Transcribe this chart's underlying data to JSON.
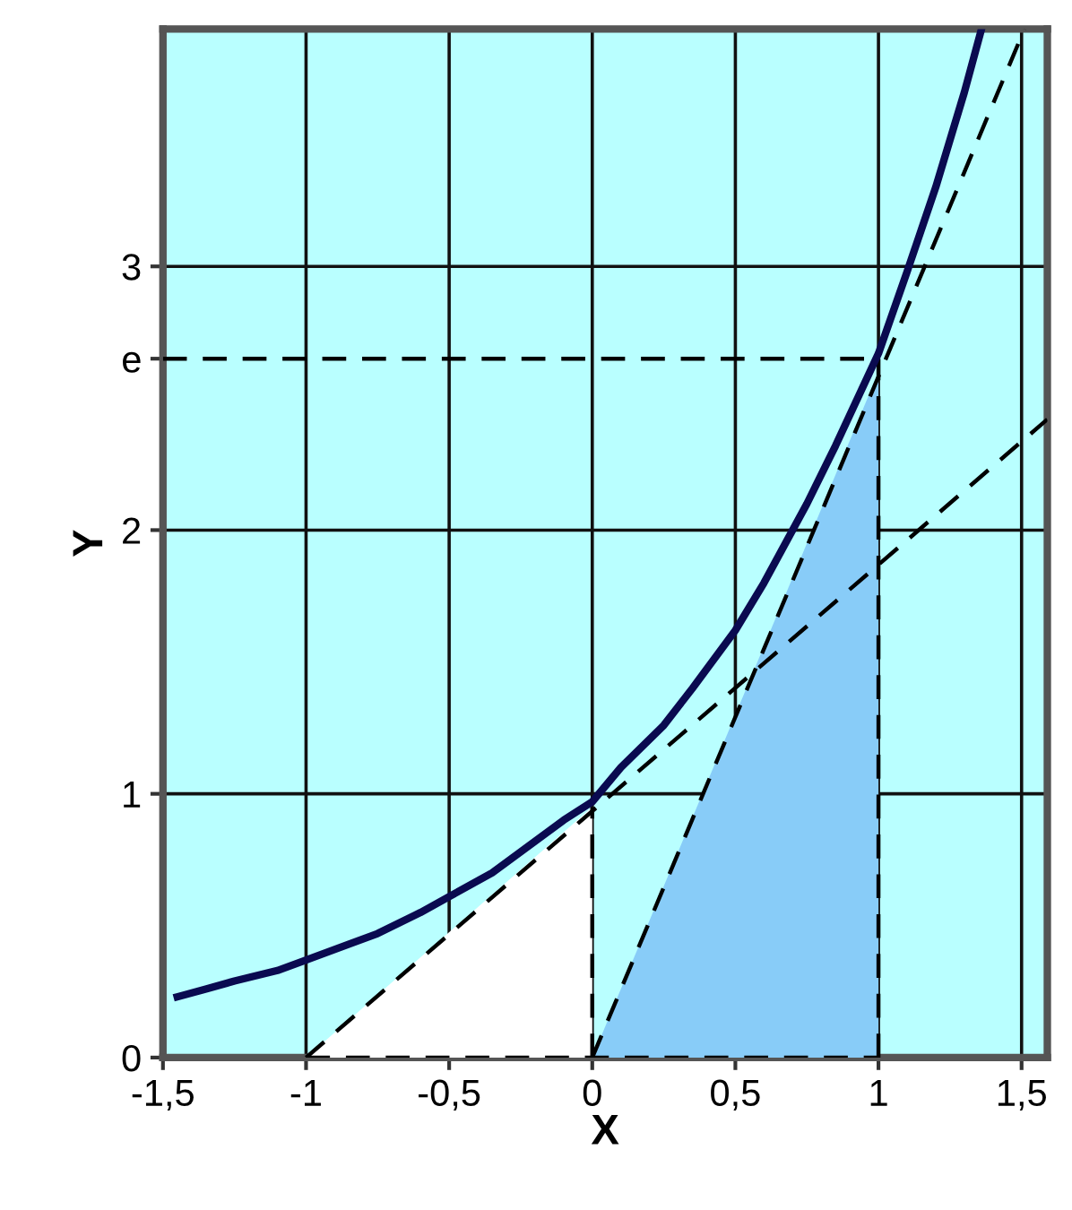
{
  "chart_data": {
    "type": "line",
    "xlabel": "X",
    "ylabel": "Y",
    "xlim": [
      -1.5,
      1.59
    ],
    "ylim": [
      0,
      3.9
    ],
    "xticks": [
      {
        "value": -1.5,
        "label": "-1,5"
      },
      {
        "value": -1,
        "label": "-1"
      },
      {
        "value": -0.5,
        "label": "-0,5"
      },
      {
        "value": 0,
        "label": "0"
      },
      {
        "value": 0.5,
        "label": "0,5"
      },
      {
        "value": 1,
        "label": "1"
      },
      {
        "value": 1.5,
        "label": "1,5"
      }
    ],
    "yticks": [
      0,
      1,
      2,
      3,
      {
        "value": 2.65,
        "label": "e"
      }
    ],
    "grid": true,
    "legend": false,
    "marker": "none",
    "series": [
      {
        "type": "area",
        "color": "#88ccf8",
        "x": [
          0,
          1
        ],
        "values": [
          0,
          2.6
        ]
      },
      {
        "type": "area",
        "color": "#ffffff",
        "x": [
          -1,
          0
        ],
        "values": [
          0,
          0.95
        ]
      },
      {
        "color": "#000000",
        "line_style": "dashed",
        "x": [
          -1.5,
          1
        ],
        "values": [
          2.65,
          2.65
        ]
      },
      {
        "color": "#000000",
        "line_style": "dashed",
        "x": [
          1,
          1
        ],
        "values": [
          0,
          2.65
        ]
      },
      {
        "color": "#000000",
        "line_style": "dashed",
        "x": [
          0,
          0
        ],
        "values": [
          0,
          0.95
        ]
      },
      {
        "color": "#000000",
        "line_style": "dashed",
        "x": [
          -1,
          1
        ],
        "values": [
          0,
          0
        ]
      },
      {
        "color": "#000000",
        "line_style": "dashed",
        "x": [
          -1,
          1.59
        ],
        "values": [
          0,
          2.42
        ]
      },
      {
        "color": "#000000",
        "line_style": "dashed",
        "x": [
          0,
          1.51
        ],
        "values": [
          0,
          3.9
        ]
      },
      {
        "color": "#0a0a50",
        "line_style": "solid",
        "x": [
          -1.45,
          -1.35,
          -1.25,
          -1.1,
          -1,
          -0.85,
          -0.75,
          -0.6,
          -0.5,
          -0.35,
          -0.25,
          -0.1,
          0,
          0.1,
          0.25,
          0.35,
          0.5,
          0.6,
          0.75,
          0.85,
          1,
          1.1,
          1.2,
          1.3,
          1.36
        ],
        "values": [
          0.23,
          0.26,
          0.29,
          0.33,
          0.37,
          0.43,
          0.47,
          0.55,
          0.61,
          0.7,
          0.78,
          0.9,
          0.97,
          1.1,
          1.26,
          1.4,
          1.62,
          1.8,
          2.1,
          2.32,
          2.67,
          2.98,
          3.3,
          3.66,
          3.9
        ]
      }
    ]
  }
}
